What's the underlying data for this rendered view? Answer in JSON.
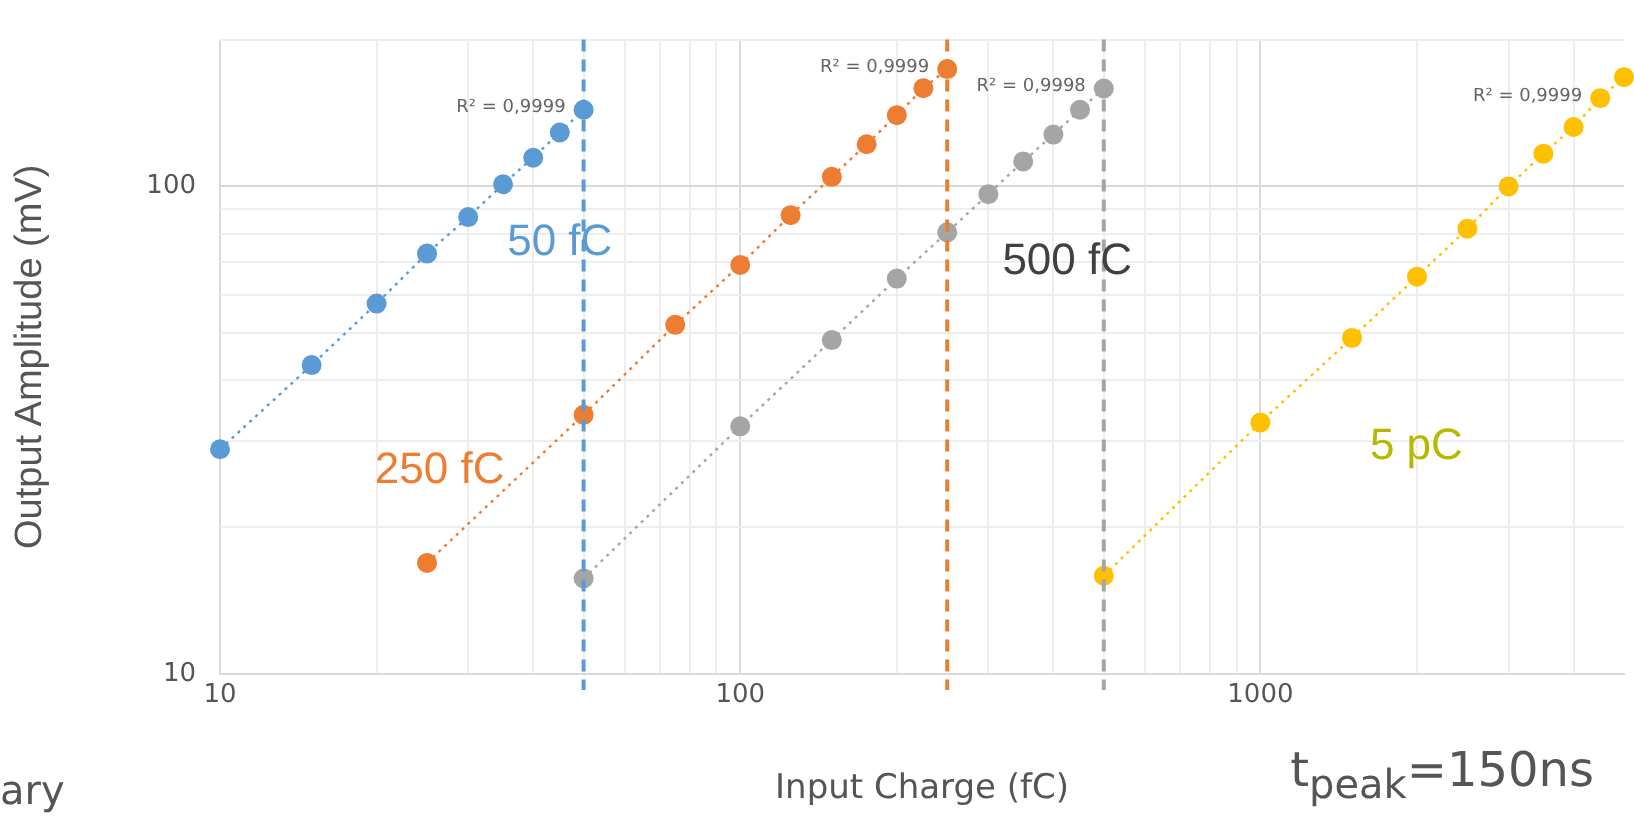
{
  "chart_data": {
    "type": "line",
    "xlabel": "Input Charge (fC)",
    "ylabel": "Output Amplitude (mV)",
    "log": "xy",
    "grid": true,
    "legend": false,
    "marker": "circle",
    "line_style": "dotted",
    "xlim": [
      10,
      5000
    ],
    "ylim": [
      10,
      200
    ],
    "xticks": [
      10,
      {
        "value": 20,
        "label": null
      },
      {
        "value": 30,
        "label": null
      },
      {
        "value": 40,
        "label": null
      },
      {
        "value": 50,
        "label": null
      },
      {
        "value": 60,
        "label": null
      },
      {
        "value": 70,
        "label": null
      },
      {
        "value": 80,
        "label": null
      },
      {
        "value": 90,
        "label": null
      },
      100,
      {
        "value": 200,
        "label": null
      },
      {
        "value": 300,
        "label": null
      },
      {
        "value": 400,
        "label": null
      },
      {
        "value": 500,
        "label": null
      },
      {
        "value": 600,
        "label": null
      },
      {
        "value": 700,
        "label": null
      },
      {
        "value": 800,
        "label": null
      },
      {
        "value": 900,
        "label": null
      },
      1000,
      {
        "value": 2000,
        "label": null
      },
      {
        "value": 3000,
        "label": null
      },
      {
        "value": 4000,
        "label": null
      }
    ],
    "yticks": [
      10,
      {
        "value": 20,
        "label": null
      },
      {
        "value": 30,
        "label": null
      },
      {
        "value": 40,
        "label": null
      },
      {
        "value": 50,
        "label": null
      },
      {
        "value": 60,
        "label": null
      },
      {
        "value": 70,
        "label": null
      },
      {
        "value": 80,
        "label": null
      },
      {
        "value": 90,
        "label": null
      },
      100,
      {
        "value": 200,
        "label": null
      }
    ],
    "series": [
      {
        "name": "50 fC",
        "color": "#5b9bd5",
        "x": [
          10,
          15,
          20,
          25,
          30,
          35,
          40,
          45,
          50
        ],
        "values": [
          28.9,
          43,
          57.5,
          72.8,
          86.5,
          101,
          114.5,
          129,
          143.6
        ]
      },
      {
        "name": "250 fC",
        "color": "#ed7d31",
        "x": [
          25,
          50,
          75,
          100,
          125,
          150,
          175,
          200,
          225,
          250
        ],
        "values": [
          16.9,
          34,
          52,
          69,
          87.3,
          104.6,
          122,
          140,
          159,
          174
        ]
      },
      {
        "name": "500 fC",
        "color": "#a5a5a5",
        "x": [
          50,
          100,
          150,
          200,
          250,
          300,
          350,
          400,
          450,
          500
        ],
        "values": [
          15.7,
          32.2,
          48.4,
          64.7,
          80.5,
          96.4,
          112.5,
          127.7,
          143.6,
          158.8
        ]
      },
      {
        "name": "5 pC",
        "color": "#ffc000",
        "x": [
          500,
          1000,
          1500,
          2000,
          2500,
          3000,
          3500,
          4000,
          4500,
          5000
        ],
        "values": [
          15.9,
          32.8,
          48.9,
          65.3,
          81.9,
          100,
          116.7,
          132.4,
          151.7,
          167.5
        ]
      }
    ],
    "ref_lines": [
      {
        "axis": "x",
        "value": 50,
        "color": "#5b9bd5",
        "line_style": "dashed"
      },
      {
        "axis": "x",
        "value": 250,
        "color": "#ed7d31",
        "line_style": "dashed"
      },
      {
        "axis": "x",
        "value": 500,
        "color": "#a5a5a5",
        "line_style": "dashed"
      }
    ],
    "annotations": [
      {
        "text": "R² = 0,9999",
        "x": 50,
        "y": 143.6
      },
      {
        "text": "R² = 0,9999",
        "x": 250,
        "y": 174
      },
      {
        "text": "R² = 0,9998",
        "x": 500,
        "y": 158.8
      },
      {
        "text": "R² = 0,9999",
        "x": 4500,
        "y": 151.7
      },
      "t$_{peak}$=150ns",
      "ary"
    ]
  }
}
